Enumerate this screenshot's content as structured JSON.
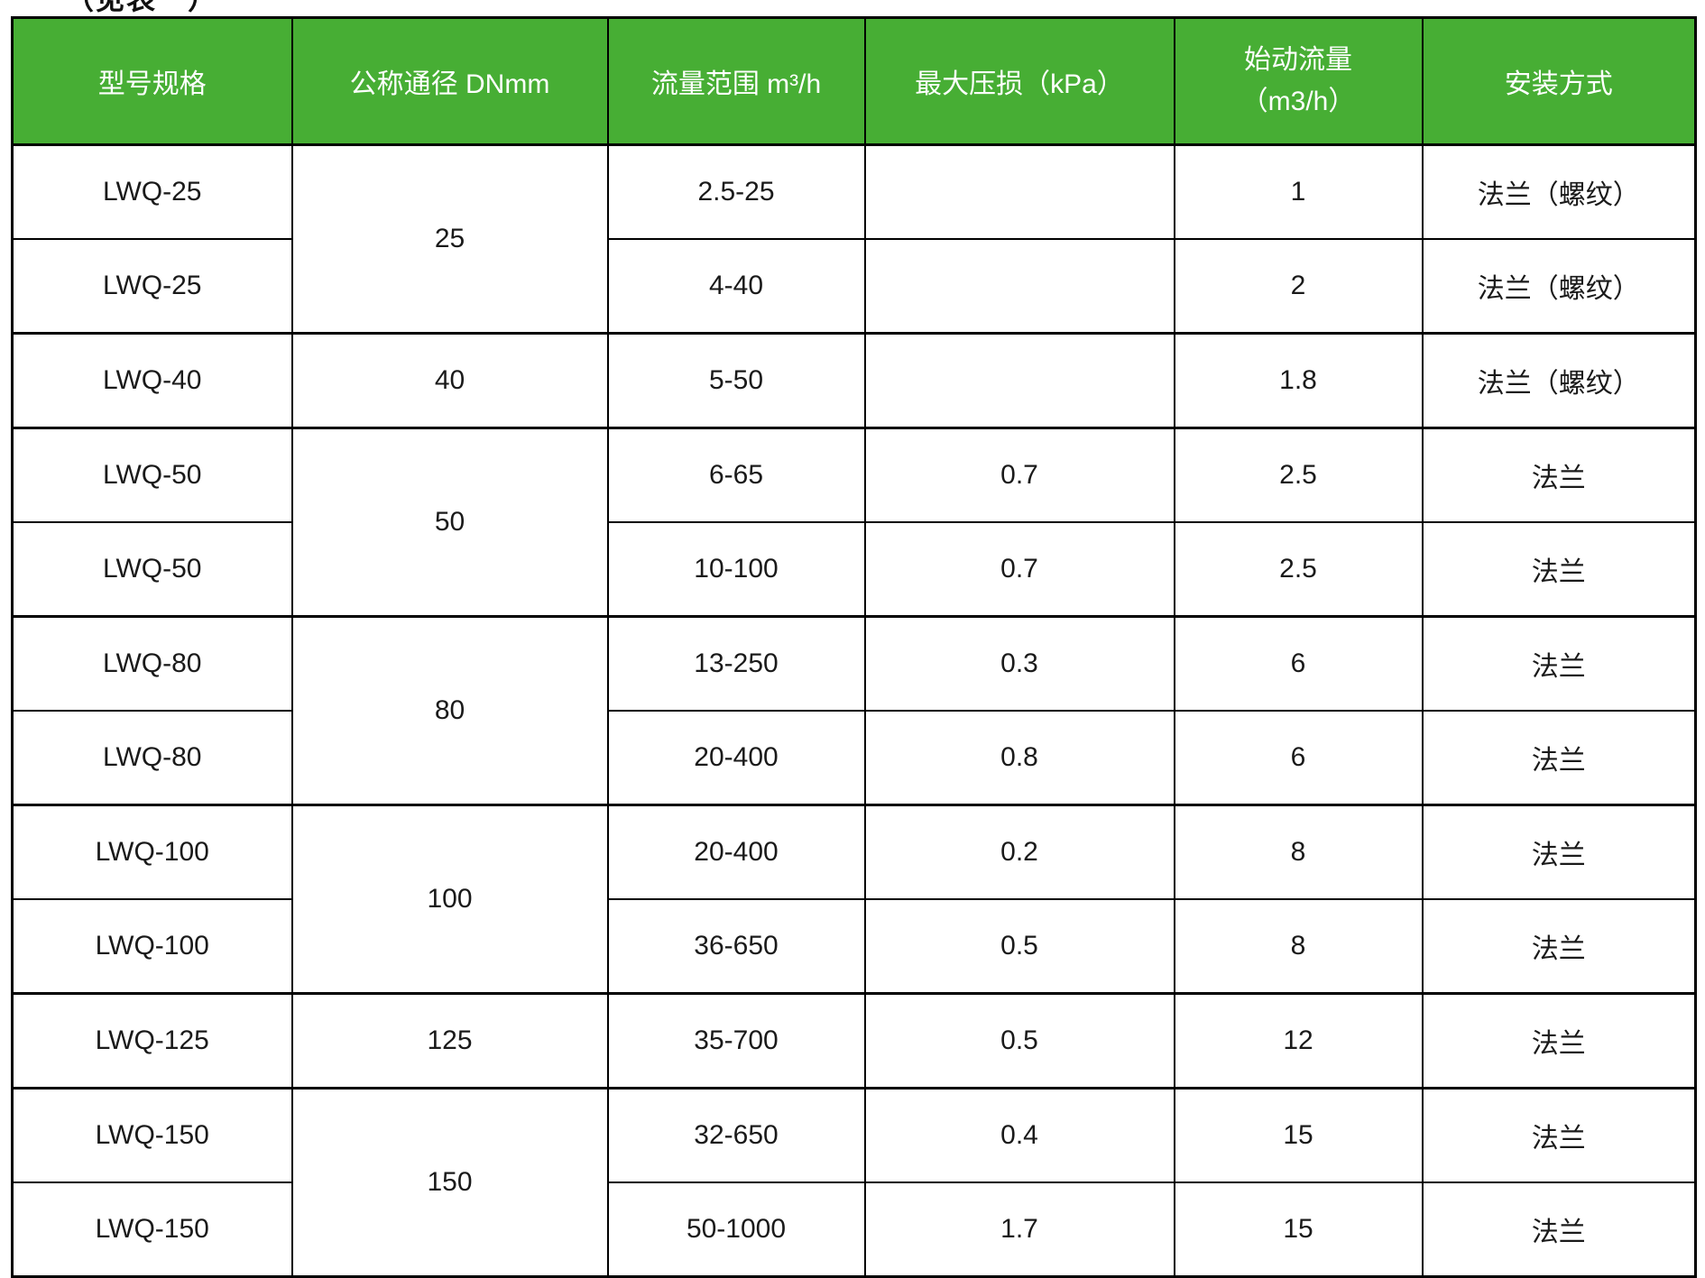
{
  "page": {
    "caption_partial": "（见表一）"
  },
  "colors": {
    "header_bg": "#47AE34",
    "header_text": "#ffffff",
    "body_text": "#1a1a1a",
    "border": "#000000"
  },
  "table": {
    "columns": [
      {
        "label": "型号规格"
      },
      {
        "label": "公称通径 DNmm"
      },
      {
        "label": "流量范围 m³/h"
      },
      {
        "label": "最大压损（kPa）"
      },
      {
        "label_line1": "始动流量",
        "label_line2": "（m3/h）"
      },
      {
        "label": "安装方式"
      }
    ],
    "rows": [
      {
        "model": "LWQ-25",
        "dn": "25",
        "flow": "2.5-25",
        "ploss": "",
        "startflow": "1",
        "install": "法兰（螺纹）"
      },
      {
        "model": "LWQ-25",
        "dn": "",
        "flow": "4-40",
        "ploss": "",
        "startflow": "2",
        "install": "法兰（螺纹）"
      },
      {
        "model": "LWQ-40",
        "dn": "40",
        "flow": "5-50",
        "ploss": "",
        "startflow": "1.8",
        "install": "法兰（螺纹）"
      },
      {
        "model": "LWQ-50",
        "dn": "50",
        "flow": "6-65",
        "ploss": "0.7",
        "startflow": "2.5",
        "install": "法兰"
      },
      {
        "model": "LWQ-50",
        "dn": "",
        "flow": "10-100",
        "ploss": "0.7",
        "startflow": "2.5",
        "install": "法兰"
      },
      {
        "model": "LWQ-80",
        "dn": "80",
        "flow": "13-250",
        "ploss": "0.3",
        "startflow": "6",
        "install": "法兰"
      },
      {
        "model": "LWQ-80",
        "dn": "",
        "flow": "20-400",
        "ploss": "0.8",
        "startflow": "6",
        "install": "法兰"
      },
      {
        "model": "LWQ-100",
        "dn": "100",
        "flow": "20-400",
        "ploss": "0.2",
        "startflow": "8",
        "install": "法兰"
      },
      {
        "model": "LWQ-100",
        "dn": "",
        "flow": "36-650",
        "ploss": "0.5",
        "startflow": "8",
        "install": "法兰"
      },
      {
        "model": "LWQ-125",
        "dn": "125",
        "flow": "35-700",
        "ploss": "0.5",
        "startflow": "12",
        "install": "法兰"
      },
      {
        "model": "LWQ-150",
        "dn": "150",
        "flow": "32-650",
        "ploss": "0.4",
        "startflow": "15",
        "install": "法兰"
      },
      {
        "model": "LWQ-150",
        "dn": "",
        "flow": "50-1000",
        "ploss": "1.7",
        "startflow": "15",
        "install": "法兰"
      }
    ]
  }
}
